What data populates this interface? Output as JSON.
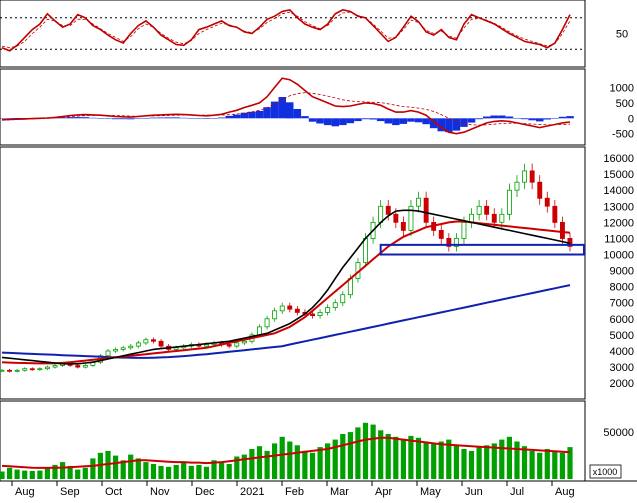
{
  "colors": {
    "rsi": "#c00000",
    "price_up": "#00a000",
    "price_down": "#cc0000",
    "ma_black": "#000000",
    "ma_red": "#cc0000",
    "ma_blue": "#1020b0",
    "macd_hist": "#1030e0",
    "volume": "#00a000",
    "volume_ma": "#cc0000",
    "support_box": "#1020b0"
  },
  "chart_data": [
    {
      "type": "line",
      "panel": "rsi",
      "y_ticks": [
        {
          "value": 50,
          "label": "50"
        }
      ],
      "reference_lines": [
        30,
        70
      ],
      "ylim": [
        10,
        90
      ],
      "series": [
        {
          "key": "rsi",
          "values": [
            32,
            28,
            35,
            45,
            55,
            62,
            75,
            66,
            58,
            62,
            74,
            70,
            60,
            55,
            48,
            42,
            38,
            50,
            60,
            66,
            58,
            48,
            42,
            36,
            35,
            42,
            55,
            58,
            62,
            66,
            60,
            58,
            52,
            50,
            58,
            68,
            72,
            78,
            80,
            70,
            62,
            58,
            55,
            62,
            75,
            80,
            78,
            72,
            70,
            60,
            50,
            40,
            45,
            58,
            72,
            65,
            52,
            48,
            55,
            45,
            42,
            62,
            74,
            70,
            66,
            62,
            56,
            50,
            45,
            40,
            38,
            36,
            32,
            38,
            55,
            74
          ]
        },
        {
          "key": "rsi_signal",
          "values": [
            34,
            32,
            34,
            40,
            50,
            58,
            68,
            66,
            60,
            60,
            68,
            68,
            62,
            56,
            50,
            45,
            40,
            46,
            56,
            62,
            58,
            50,
            44,
            39,
            37,
            41,
            50,
            55,
            59,
            63,
            61,
            58,
            53,
            51,
            56,
            64,
            69,
            75,
            77,
            72,
            65,
            60,
            56,
            60,
            70,
            76,
            77,
            73,
            70,
            62,
            53,
            44,
            45,
            55,
            67,
            64,
            54,
            50,
            53,
            47,
            44,
            57,
            68,
            69,
            67,
            63,
            58,
            52,
            47,
            43,
            40,
            37,
            34,
            37,
            50,
            66
          ]
        }
      ]
    },
    {
      "type": "line",
      "panel": "macd",
      "y_ticks": [
        {
          "value": 1000,
          "label": "1000"
        },
        {
          "value": 500,
          "label": "500"
        },
        {
          "value": 0,
          "label": "0"
        },
        {
          "value": -500,
          "label": "-500"
        }
      ],
      "ylim": [
        -800,
        1500
      ],
      "series": [
        {
          "key": "macd",
          "values": [
            -50,
            -40,
            -30,
            -20,
            -10,
            0,
            10,
            30,
            60,
            90,
            110,
            120,
            110,
            100,
            80,
            60,
            50,
            40,
            60,
            80,
            100,
            110,
            120,
            130,
            120,
            110,
            90,
            80,
            100,
            130,
            200,
            260,
            350,
            420,
            500,
            700,
            1000,
            1300,
            1250,
            1100,
            900,
            700,
            600,
            500,
            400,
            380,
            400,
            450,
            500,
            480,
            420,
            300,
            200,
            200,
            250,
            200,
            100,
            -100,
            -300,
            -450,
            -500,
            -450,
            -350,
            -250,
            -150,
            -100,
            -80,
            -100,
            -150,
            -200,
            -250,
            -300,
            -250,
            -200,
            -150,
            -120
          ]
        },
        {
          "key": "signal",
          "values": [
            -60,
            -50,
            -40,
            -30,
            -20,
            -10,
            0,
            10,
            30,
            50,
            70,
            85,
            95,
            98,
            95,
            88,
            80,
            72,
            70,
            72,
            78,
            85,
            92,
            100,
            105,
            106,
            104,
            100,
            100,
            105,
            120,
            140,
            170,
            210,
            260,
            340,
            460,
            610,
            730,
            800,
            830,
            810,
            770,
            720,
            660,
            600,
            560,
            540,
            530,
            520,
            510,
            470,
            420,
            380,
            360,
            330,
            290,
            220,
            120,
            0,
            -100,
            -170,
            -210,
            -220,
            -210,
            -190,
            -170,
            -160,
            -160,
            -170,
            -185,
            -200,
            -210,
            -208,
            -200,
            -190
          ]
        },
        {
          "key": "histogram",
          "values": [
            10,
            10,
            10,
            10,
            10,
            10,
            10,
            20,
            30,
            40,
            40,
            35,
            15,
            2,
            -15,
            -28,
            -30,
            -32,
            -10,
            8,
            22,
            25,
            28,
            30,
            15,
            4,
            -14,
            -20,
            0,
            25,
            80,
            120,
            180,
            210,
            240,
            360,
            540,
            690,
            520,
            300,
            70,
            -110,
            -170,
            -220,
            -260,
            -220,
            -160,
            -90,
            -30,
            -40,
            -90,
            -170,
            -220,
            -180,
            -110,
            -130,
            -190,
            -320,
            -420,
            -450,
            -400,
            -280,
            -140,
            -30,
            60,
            90,
            90,
            60,
            10,
            -30,
            -65,
            -100,
            -40,
            8,
            50,
            70
          ]
        }
      ]
    },
    {
      "type": "candlestick",
      "panel": "price",
      "x_ticks": [
        "Aug",
        "Sep",
        "Oct",
        "Nov",
        "Dec",
        "2021",
        "Feb",
        "Mar",
        "Apr",
        "May",
        "Jun",
        "Jul",
        "Aug"
      ],
      "y_ticks": [
        16000,
        15000,
        14000,
        13000,
        12000,
        11000,
        10000,
        9000,
        8000,
        7000,
        6000,
        5000,
        4000,
        3000,
        2000
      ],
      "ylim": [
        1200,
        16500
      ],
      "series": [
        {
          "key": "close",
          "values": [
            2800,
            2750,
            2800,
            2900,
            2850,
            2900,
            3000,
            3100,
            3200,
            3100,
            3000,
            3100,
            3300,
            3700,
            4000,
            4100,
            4200,
            4300,
            4500,
            4700,
            4600,
            4300,
            4100,
            4200,
            4300,
            4400,
            4300,
            4400,
            4500,
            4400,
            4300,
            4500,
            4600,
            5000,
            5500,
            6000,
            6500,
            6800,
            6600,
            6400,
            6300,
            6200,
            6400,
            6700,
            7000,
            7500,
            8500,
            9500,
            11000,
            12000,
            13000,
            12500,
            12000,
            11500,
            13000,
            13500,
            12000,
            11500,
            11000,
            10500,
            11000,
            12000,
            12500,
            13000,
            12500,
            12000,
            12500,
            14000,
            14500,
            15200,
            14500,
            13500,
            13000,
            12000,
            11000,
            10500
          ]
        },
        {
          "key": "ma_black",
          "values": [
            3600,
            3550,
            3500,
            3450,
            3400,
            3350,
            3300,
            3250,
            3200,
            3200,
            3200,
            3250,
            3300,
            3400,
            3500,
            3600,
            3700,
            3800,
            3900,
            4000,
            4100,
            4150,
            4200,
            4250,
            4300,
            4350,
            4400,
            4450,
            4500,
            4550,
            4600,
            4700,
            4800,
            4900,
            5000,
            5100,
            5300,
            5500,
            5700,
            6000,
            6300,
            6700,
            7200,
            7800,
            8500,
            9200,
            9800,
            10400,
            11000,
            11500,
            12000,
            12400,
            12700,
            12750,
            12750,
            12700,
            12600,
            12500,
            12400,
            12300,
            12200,
            12100,
            12000,
            11900,
            11800,
            11700,
            11600,
            11500,
            11400,
            11300,
            11200,
            11100,
            11000,
            10900,
            10800,
            10700
          ]
        },
        {
          "key": "ma_red",
          "values": [
            3300,
            3280,
            3260,
            3250,
            3240,
            3230,
            3230,
            3240,
            3260,
            3300,
            3350,
            3400,
            3450,
            3500,
            3550,
            3600,
            3650,
            3700,
            3750,
            3800,
            3850,
            3900,
            3950,
            4000,
            4050,
            4100,
            4150,
            4200,
            4300,
            4400,
            4500,
            4600,
            4700,
            4800,
            4900,
            5000,
            5100,
            5300,
            5500,
            5800,
            6100,
            6500,
            6900,
            7300,
            7700,
            8100,
            8500,
            8900,
            9300,
            9700,
            10100,
            10500,
            10800,
            11100,
            11300,
            11500,
            11700,
            11800,
            11900,
            12000,
            12050,
            12050,
            12000,
            11950,
            11900,
            11850,
            11800,
            11750,
            11700,
            11650,
            11600,
            11550,
            11500,
            11450,
            11400,
            11350
          ]
        },
        {
          "key": "ma_blue",
          "values": [
            3900,
            3880,
            3860,
            3840,
            3820,
            3800,
            3780,
            3760,
            3740,
            3720,
            3700,
            3680,
            3660,
            3640,
            3620,
            3600,
            3590,
            3580,
            3570,
            3570,
            3580,
            3600,
            3620,
            3650,
            3680,
            3720,
            3760,
            3800,
            3850,
            3900,
            3950,
            4000,
            4050,
            4100,
            4150,
            4200,
            4250,
            4300,
            4400,
            4500,
            4600,
            4700,
            4800,
            4900,
            5000,
            5100,
            5200,
            5300,
            5400,
            5500,
            5600,
            5700,
            5800,
            5900,
            6000,
            6100,
            6200,
            6300,
            6400,
            6500,
            6600,
            6700,
            6800,
            6900,
            7000,
            7100,
            7200,
            7300,
            7400,
            7500,
            7600,
            7700,
            7800,
            7900,
            8000,
            8100
          ]
        }
      ],
      "support_zone": [
        10000,
        10600
      ]
    },
    {
      "type": "bar",
      "panel": "volume",
      "y_ticks": [
        {
          "value": 50000,
          "label": "50000"
        }
      ],
      "unit_label": "x1000",
      "ylim": [
        0,
        80000
      ],
      "series": [
        {
          "key": "volume",
          "values": [
            8000,
            12000,
            10000,
            9000,
            8500,
            9000,
            12000,
            15000,
            18000,
            14000,
            10000,
            12000,
            22000,
            28000,
            30000,
            25000,
            20000,
            26000,
            22000,
            18000,
            16000,
            14000,
            13000,
            15000,
            18000,
            14000,
            15000,
            13000,
            20000,
            18000,
            16000,
            24000,
            26000,
            32000,
            35000,
            30000,
            38000,
            45000,
            40000,
            36000,
            30000,
            28000,
            34000,
            38000,
            42000,
            48000,
            50000,
            55000,
            60000,
            58000,
            52000,
            48000,
            45000,
            42000,
            46000,
            44000,
            40000,
            38000,
            40000,
            42000,
            36000,
            32000,
            30000,
            34000,
            36000,
            38000,
            42000,
            45000,
            40000,
            35000,
            30000,
            28000,
            32000,
            30000,
            28000,
            34000
          ]
        },
        {
          "key": "volume_ma",
          "values": [
            14000,
            13500,
            13000,
            12500,
            12000,
            11800,
            11800,
            12000,
            12200,
            12500,
            13000,
            13500,
            14000,
            15000,
            16000,
            17000,
            18000,
            19000,
            20000,
            20000,
            19500,
            19000,
            18500,
            18000,
            18000,
            17500,
            17500,
            17000,
            17500,
            18000,
            19000,
            20000,
            21000,
            22000,
            23000,
            24000,
            25000,
            26000,
            27000,
            28000,
            29000,
            30000,
            31000,
            32000,
            34000,
            36000,
            38000,
            40000,
            42000,
            43000,
            44000,
            44000,
            43000,
            42000,
            41000,
            40000,
            39000,
            38000,
            37000,
            36500,
            36000,
            35500,
            35000,
            34500,
            34000,
            33500,
            33000,
            32500,
            32000,
            31500,
            31000,
            30500,
            30000,
            29500,
            29000,
            28500
          ]
        }
      ]
    }
  ]
}
